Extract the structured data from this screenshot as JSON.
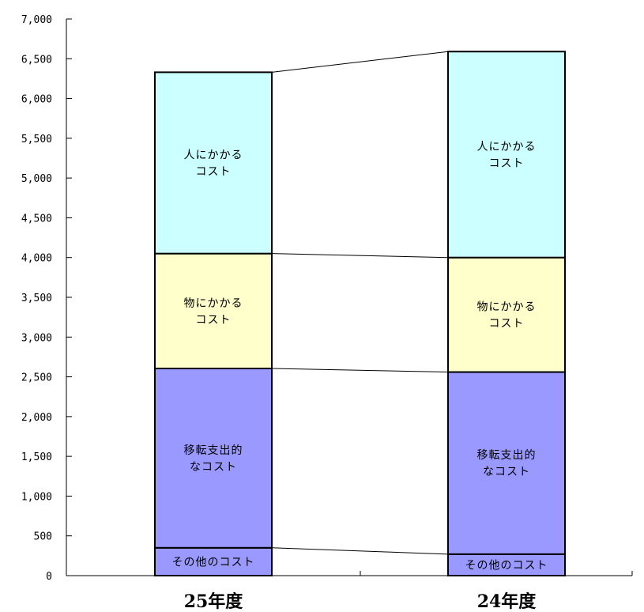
{
  "chart_data": {
    "type": "bar",
    "stacked": true,
    "title": "",
    "xlabel": "",
    "ylabel": "",
    "ylim": [
      0,
      7000
    ],
    "yticks": [
      0,
      500,
      1000,
      1500,
      2000,
      2500,
      3000,
      3500,
      4000,
      4500,
      5000,
      5500,
      6000,
      6500,
      7000
    ],
    "ytick_labels": [
      "0",
      "500",
      "1,000",
      "1,500",
      "2,000",
      "2,500",
      "3,000",
      "3,500",
      "4,000",
      "4,500",
      "5,000",
      "5,500",
      "6,000",
      "6,500",
      "7,000"
    ],
    "categories": [
      "25年度",
      "24年度"
    ],
    "connector_lines": true,
    "grid": false,
    "series": [
      {
        "name": "その他のコスト",
        "label_lines": [
          "その他のコスト"
        ],
        "color": "#9999ff",
        "values": [
          350,
          270
        ]
      },
      {
        "name": "移転支出的なコスト",
        "label_lines": [
          "移転支出的",
          "なコスト"
        ],
        "color": "#9999ff",
        "values": [
          2255,
          2290
        ]
      },
      {
        "name": "物にかかるコスト",
        "label_lines": [
          "物にかかる",
          "コスト"
        ],
        "color": "#ffffcc",
        "values": [
          1445,
          1440
        ]
      },
      {
        "name": "人にかかるコスト",
        "label_lines": [
          "人にかかる",
          "コスト"
        ],
        "color": "#ccffff",
        "values": [
          2280,
          2590
        ]
      }
    ]
  }
}
